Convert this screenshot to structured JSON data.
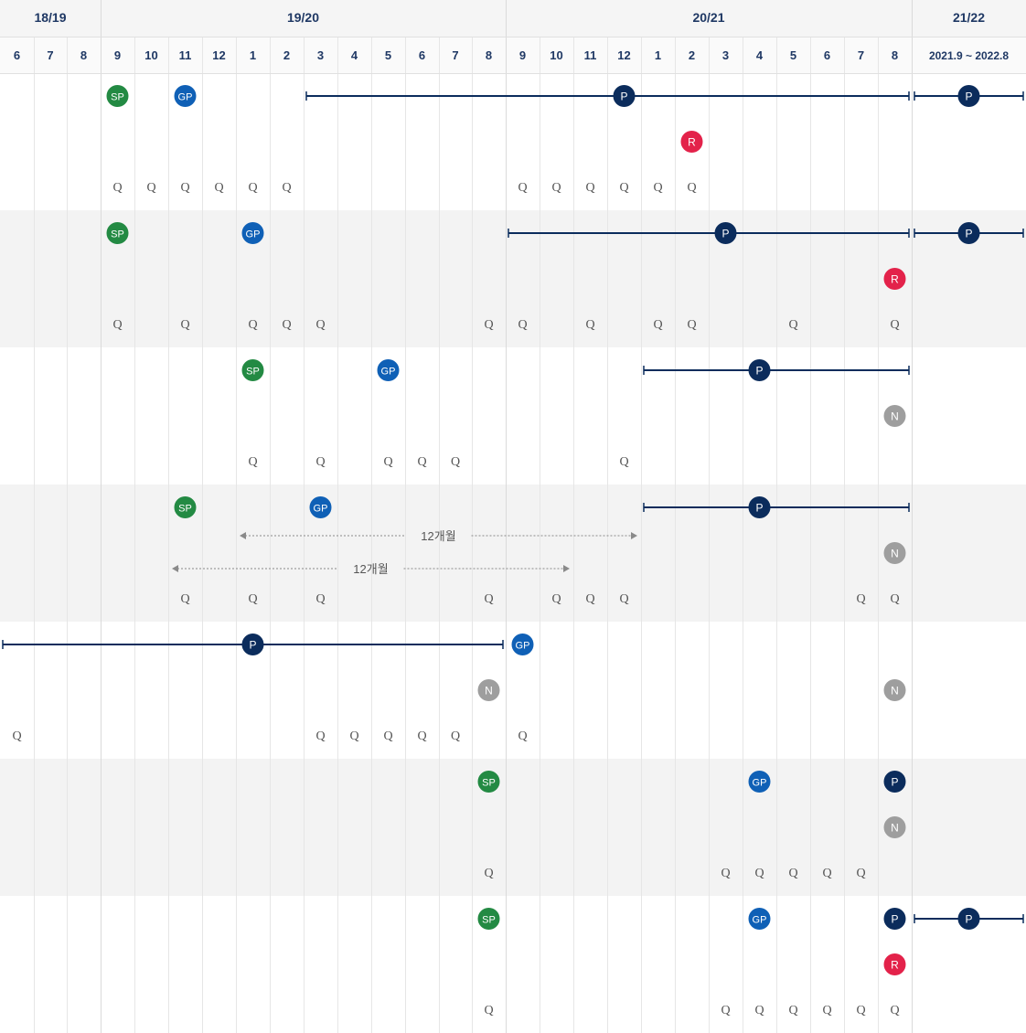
{
  "seasons": [
    {
      "label": "18/19",
      "start": 0,
      "end": 3
    },
    {
      "label": "19/20",
      "start": 3,
      "end": 15
    },
    {
      "label": "20/21",
      "start": 15,
      "end": 27
    },
    {
      "label": "21/22",
      "start": 27,
      "end": 28
    }
  ],
  "months": [
    "6",
    "7",
    "8",
    "9",
    "10",
    "11",
    "12",
    "1",
    "2",
    "3",
    "4",
    "5",
    "6",
    "7",
    "8",
    "9",
    "10",
    "11",
    "12",
    "1",
    "2",
    "3",
    "4",
    "5",
    "6",
    "7",
    "8",
    "2021.9 ~ 2022.8"
  ],
  "colors": {
    "header_text": "#1f3864",
    "sp": "#238a43",
    "gp": "#0f60b6",
    "p": "#0b2c5c",
    "r": "#e3224a",
    "n": "#9e9e9e",
    "q_text": "#555555",
    "grid": "#e6e6e6",
    "band": "#f3f3f3",
    "line": "#0b2c5c",
    "arrow": "#8a8a8a"
  },
  "rows": [
    {
      "shaded": false,
      "markers": [
        {
          "type": "SP",
          "col": 3,
          "line": 0
        },
        {
          "type": "GP",
          "col": 5,
          "line": 0
        },
        {
          "type": "P",
          "col": 18,
          "line": 0
        },
        {
          "type": "P",
          "col": 27,
          "line": 0
        },
        {
          "type": "R",
          "col": 20,
          "line": 1
        }
      ],
      "spans": [
        {
          "from": 9,
          "to": 27,
          "line": 0
        },
        {
          "from": 27,
          "to": 28,
          "line": 0
        }
      ],
      "q": [
        3,
        4,
        5,
        6,
        7,
        8,
        15,
        16,
        17,
        18,
        19,
        20
      ]
    },
    {
      "shaded": true,
      "markers": [
        {
          "type": "SP",
          "col": 3,
          "line": 0
        },
        {
          "type": "GP",
          "col": 7,
          "line": 0
        },
        {
          "type": "P",
          "col": 21,
          "line": 0
        },
        {
          "type": "P",
          "col": 27,
          "line": 0
        },
        {
          "type": "R",
          "col": 26,
          "line": 1
        }
      ],
      "spans": [
        {
          "from": 15,
          "to": 27,
          "line": 0
        },
        {
          "from": 27,
          "to": 28,
          "line": 0
        }
      ],
      "q": [
        3,
        5,
        7,
        8,
        9,
        14,
        15,
        17,
        19,
        20,
        23,
        26
      ]
    },
    {
      "shaded": false,
      "markers": [
        {
          "type": "SP",
          "col": 7,
          "line": 0
        },
        {
          "type": "GP",
          "col": 11,
          "line": 0
        },
        {
          "type": "P",
          "col": 22,
          "line": 0
        },
        {
          "type": "N",
          "col": 26,
          "line": 1
        }
      ],
      "spans": [
        {
          "from": 19,
          "to": 27,
          "line": 0
        }
      ],
      "q": [
        7,
        9,
        11,
        12,
        13,
        18
      ]
    },
    {
      "shaded": true,
      "markers": [
        {
          "type": "SP",
          "col": 5,
          "line": 0
        },
        {
          "type": "GP",
          "col": 9,
          "line": 0
        },
        {
          "type": "P",
          "col": 22,
          "line": 0
        },
        {
          "type": "N",
          "col": 26,
          "line": 1
        }
      ],
      "spans": [
        {
          "from": 19,
          "to": 27,
          "line": 0
        }
      ],
      "arrows": [
        {
          "from": 7,
          "to": 19,
          "label": "12개월",
          "level": 0
        },
        {
          "from": 5,
          "to": 17,
          "label": "12개월",
          "level": 1
        }
      ],
      "q": [
        5,
        7,
        9,
        14,
        16,
        17,
        18,
        25,
        26
      ]
    },
    {
      "shaded": false,
      "markers": [
        {
          "type": "P",
          "col": 7,
          "line": 0
        },
        {
          "type": "GP",
          "col": 15,
          "line": 0
        },
        {
          "type": "N",
          "col": 14,
          "line": 1
        },
        {
          "type": "N",
          "col": 26,
          "line": 1
        }
      ],
      "spans": [
        {
          "from": 0,
          "to": 15,
          "line": 0
        }
      ],
      "q": [
        0,
        9,
        10,
        11,
        12,
        13,
        15
      ]
    },
    {
      "shaded": true,
      "markers": [
        {
          "type": "SP",
          "col": 14,
          "line": 0
        },
        {
          "type": "GP",
          "col": 22,
          "line": 0
        },
        {
          "type": "P",
          "col": 26,
          "line": 0
        },
        {
          "type": "N",
          "col": 26,
          "line": 1
        }
      ],
      "spans": [],
      "q": [
        14,
        21,
        22,
        23,
        24,
        25
      ]
    },
    {
      "shaded": false,
      "markers": [
        {
          "type": "SP",
          "col": 14,
          "line": 0
        },
        {
          "type": "GP",
          "col": 22,
          "line": 0
        },
        {
          "type": "P",
          "col": 26,
          "line": 0
        },
        {
          "type": "P",
          "col": 27,
          "line": 0
        },
        {
          "type": "R",
          "col": 26,
          "line": 1
        }
      ],
      "spans": [
        {
          "from": 27,
          "to": 28,
          "line": 0
        }
      ],
      "q": [
        14,
        21,
        22,
        23,
        24,
        25,
        26
      ]
    }
  ]
}
